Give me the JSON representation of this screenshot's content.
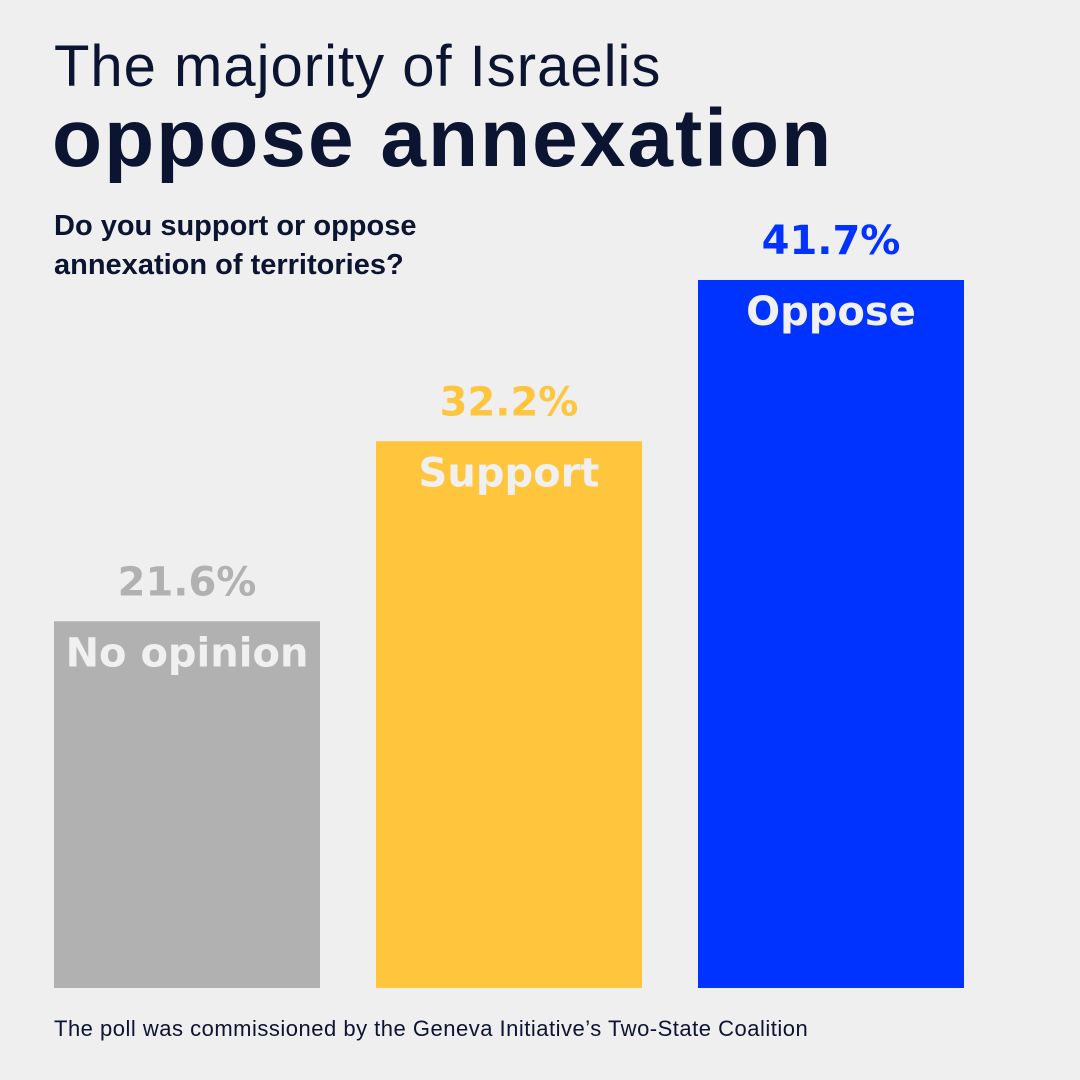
{
  "title": {
    "line1": "The majority of Israelis",
    "line2": "oppose annexation"
  },
  "question": "Do you support or oppose\nannexation of territories?",
  "source": "The poll was commissioned by the Geneva Initiative’s Two-State Coalition",
  "chart_data": {
    "type": "bar",
    "categories": [
      "No opinion",
      "Support",
      "Oppose"
    ],
    "values": [
      21.6,
      32.2,
      41.7
    ],
    "value_labels": [
      "21.6%",
      "32.2%",
      "41.7%"
    ],
    "colors": [
      "#b1b1b1",
      "#ffc53d",
      "#0033ff"
    ],
    "label_color_inside": "#f0f0f0",
    "title": "",
    "xlabel": "",
    "ylabel": "",
    "ylim": [
      0,
      50
    ],
    "grid": false,
    "legend": "none"
  }
}
